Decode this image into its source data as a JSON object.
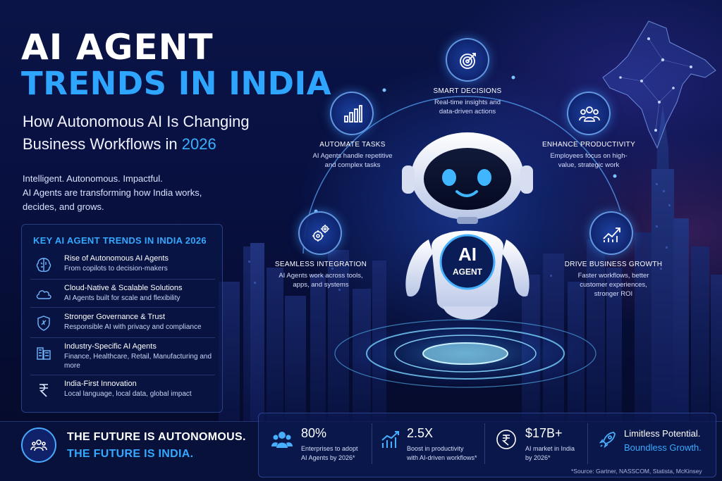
{
  "header": {
    "title_line1": "AI AGENT",
    "title_line2": "TRENDS IN INDIA",
    "subtitle_part1": "How Autonomous AI Is Changing",
    "subtitle_part2": "Business Workflows in",
    "subtitle_year": "2026"
  },
  "intro": {
    "line1": "Intelligent. Autonomous. Impactful.",
    "line2": "AI Agents are transforming how India works,",
    "line3": "decides, and grows."
  },
  "trends": {
    "title": "KEY AI AGENT TRENDS IN INDIA 2026",
    "items": [
      {
        "name": "Rise of Autonomous AI Agents",
        "desc": "From copilots to decision-makers",
        "icon": "brain-icon"
      },
      {
        "name": "Cloud-Native & Scalable Solutions",
        "desc": "AI Agents built for scale and flexibility",
        "icon": "cloud-icon"
      },
      {
        "name": "Stronger Governance & Trust",
        "desc": "Responsible AI with privacy and compliance",
        "icon": "shield-icon"
      },
      {
        "name": "Industry-Specific AI Agents",
        "desc": "Finance, Healthcare, Retail, Manufacturing and more",
        "icon": "buildings-icon"
      },
      {
        "name": "India-First Innovation",
        "desc": "Local language, local data, global impact",
        "icon": "rupee-icon"
      }
    ]
  },
  "features": {
    "smart": {
      "title": "SMART DECISIONS",
      "desc1": "Real-time insights and",
      "desc2": "data-driven actions",
      "icon": "target-icon"
    },
    "automate": {
      "title": "AUTOMATE TASKS",
      "desc1": "AI Agents handle repetitive",
      "desc2": "and complex tasks",
      "icon": "bar-chart-icon"
    },
    "productivity": {
      "title": "ENHANCE PRODUCTIVITY",
      "desc1": "Employees focus on high-",
      "desc2": "value, strategic work",
      "icon": "team-icon"
    },
    "integration": {
      "title": "SEAMLESS INTEGRATION",
      "desc1": "AI Agents work across tools,",
      "desc2": "apps, and systems",
      "icon": "gears-icon"
    },
    "growth": {
      "title": "DRIVE BUSINESS GROWTH",
      "desc1": "Faster workflows, better",
      "desc2": "customer experiences,",
      "desc3": "stronger ROI",
      "icon": "growth-chart-icon"
    }
  },
  "robot": {
    "badge_line1": "AI",
    "badge_line2": "AGENT"
  },
  "footer": {
    "future_line1": "THE FUTURE IS AUTONOMOUS.",
    "future_line2": "THE FUTURE IS INDIA.",
    "stats": [
      {
        "value": "80%",
        "label1": "Enterprises to adopt",
        "label2": "AI Agents by 2026*",
        "icon": "users-icon"
      },
      {
        "value": "2.5X",
        "label1": "Boost in productivity",
        "label2": "with AI-driven workflows*",
        "icon": "rising-bars-icon"
      },
      {
        "value": "$17B+",
        "label1": "AI market in India",
        "label2": "by 2026*",
        "icon": "rupee-coin-icon"
      }
    ],
    "limitless_line1": "Limitless Potential.",
    "limitless_line2": "Boundless Growth.",
    "source": "*Source: Gartner, NASSCOM, Statista, McKinsey"
  },
  "colors": {
    "accent_blue": "#2ea6ff",
    "background": "#060d33"
  }
}
